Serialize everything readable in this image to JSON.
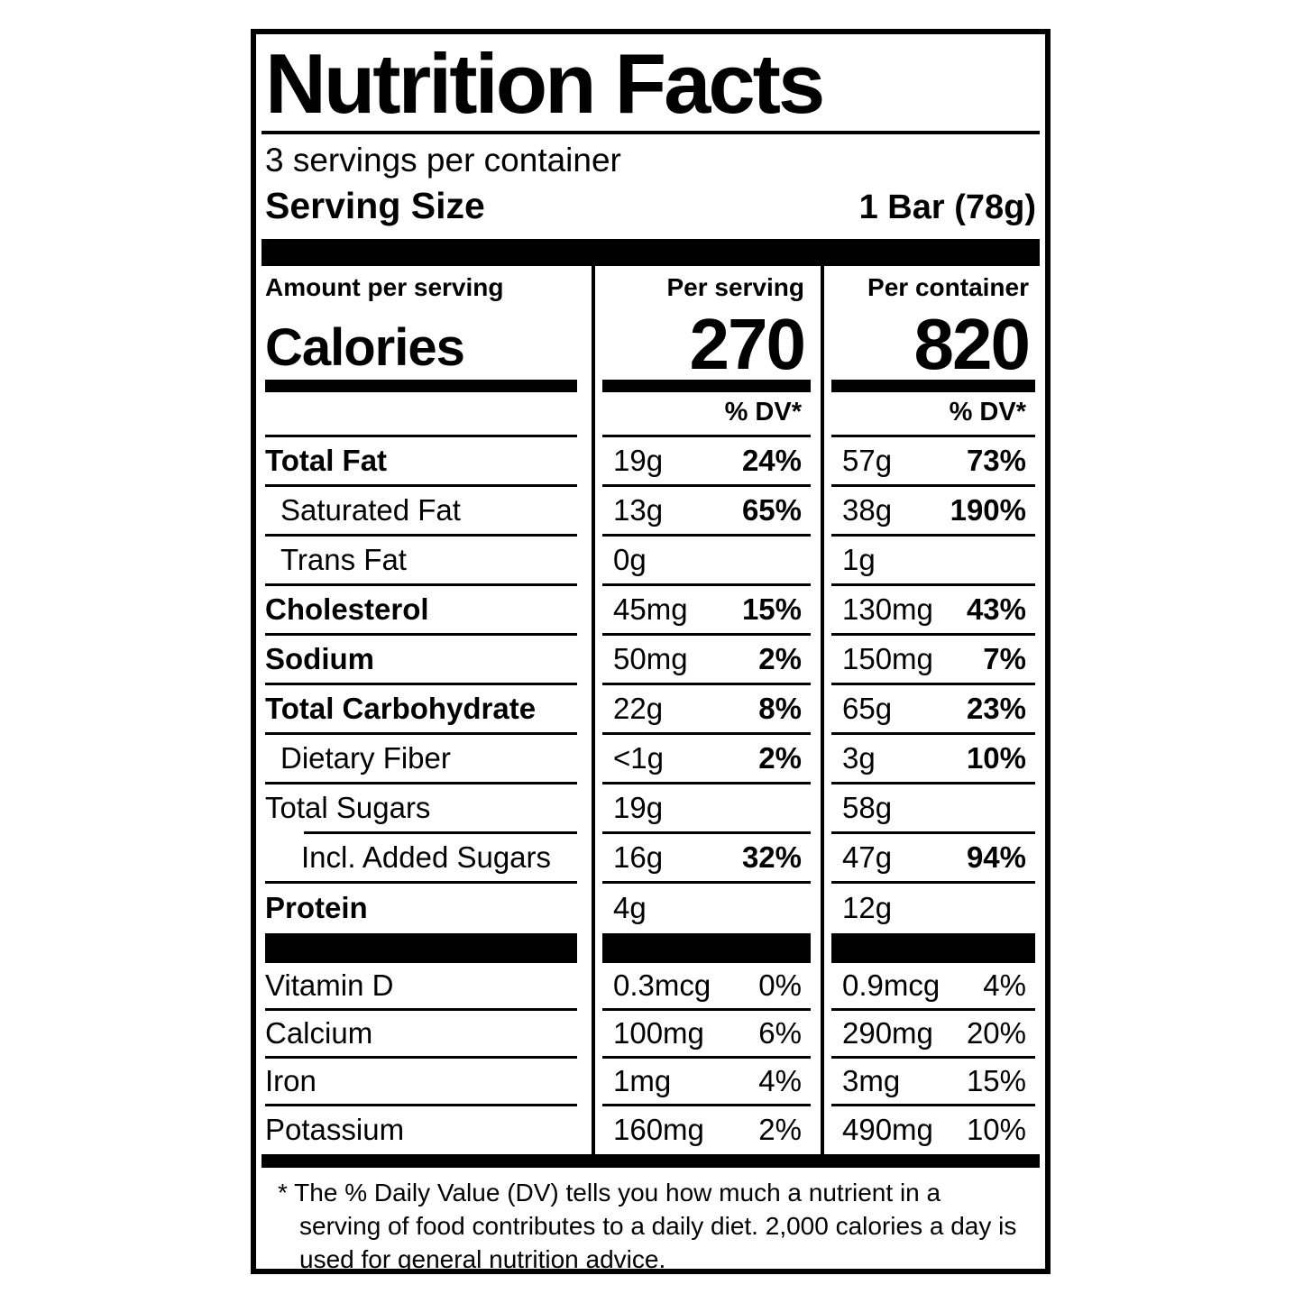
{
  "label": {
    "title": "Nutrition Facts",
    "servings_per_container": "3 servings per container",
    "serving_size": {
      "label": "Serving Size",
      "value": "1 Bar (78g)"
    },
    "calories": {
      "amount_label": "Amount per serving",
      "name": "Calories",
      "per_serving_header": "Per serving",
      "per_container_header": "Per container",
      "per_serving_value": "270",
      "per_container_value": "820"
    },
    "dv_header": "% DV*",
    "nutrients": [
      {
        "name": "Total Fat",
        "serving": {
          "amount": "19g",
          "dv": "24%"
        },
        "container": {
          "amount": "57g",
          "dv": "73%"
        }
      },
      {
        "name": "Saturated Fat",
        "serving": {
          "amount": "13g",
          "dv": "65%"
        },
        "container": {
          "amount": "38g",
          "dv": "190%"
        }
      },
      {
        "name": "Trans Fat",
        "serving": {
          "amount": "0g",
          "dv": ""
        },
        "container": {
          "amount": "1g",
          "dv": ""
        }
      },
      {
        "name": "Cholesterol",
        "serving": {
          "amount": "45mg",
          "dv": "15%"
        },
        "container": {
          "amount": "130mg",
          "dv": "43%"
        }
      },
      {
        "name": "Sodium",
        "serving": {
          "amount": "50mg",
          "dv": "2%"
        },
        "container": {
          "amount": "150mg",
          "dv": "7%"
        }
      },
      {
        "name": "Total Carbohydrate",
        "serving": {
          "amount": "22g",
          "dv": "8%"
        },
        "container": {
          "amount": "65g",
          "dv": "23%"
        }
      },
      {
        "name": "Dietary Fiber",
        "serving": {
          "amount": "<1g",
          "dv": "2%"
        },
        "container": {
          "amount": "3g",
          "dv": "10%"
        }
      },
      {
        "name": "Total Sugars",
        "serving": {
          "amount": "19g",
          "dv": ""
        },
        "container": {
          "amount": "58g",
          "dv": ""
        }
      },
      {
        "name": "Incl. Added Sugars",
        "serving": {
          "amount": "16g",
          "dv": "32%"
        },
        "container": {
          "amount": "47g",
          "dv": "94%"
        }
      },
      {
        "name": "Protein",
        "serving": {
          "amount": "4g",
          "dv": ""
        },
        "container": {
          "amount": "12g",
          "dv": ""
        }
      }
    ],
    "vitamins": [
      {
        "name": "Vitamin D",
        "serving": {
          "amount": "0.3mcg",
          "dv": "0%"
        },
        "container": {
          "amount": "0.9mcg",
          "dv": "4%"
        }
      },
      {
        "name": "Calcium",
        "serving": {
          "amount": "100mg",
          "dv": "6%"
        },
        "container": {
          "amount": "290mg",
          "dv": "20%"
        }
      },
      {
        "name": "Iron",
        "serving": {
          "amount": "1mg",
          "dv": "4%"
        },
        "container": {
          "amount": "3mg",
          "dv": "15%"
        }
      },
      {
        "name": "Potassium",
        "serving": {
          "amount": "160mg",
          "dv": "2%"
        },
        "container": {
          "amount": "490mg",
          "dv": "10%"
        }
      }
    ],
    "footnote": "* The % Daily Value (DV) tells you how much a nutrient in a serving of food contributes to a daily diet. 2,000 calories a day is used for general nutrition advice."
  }
}
